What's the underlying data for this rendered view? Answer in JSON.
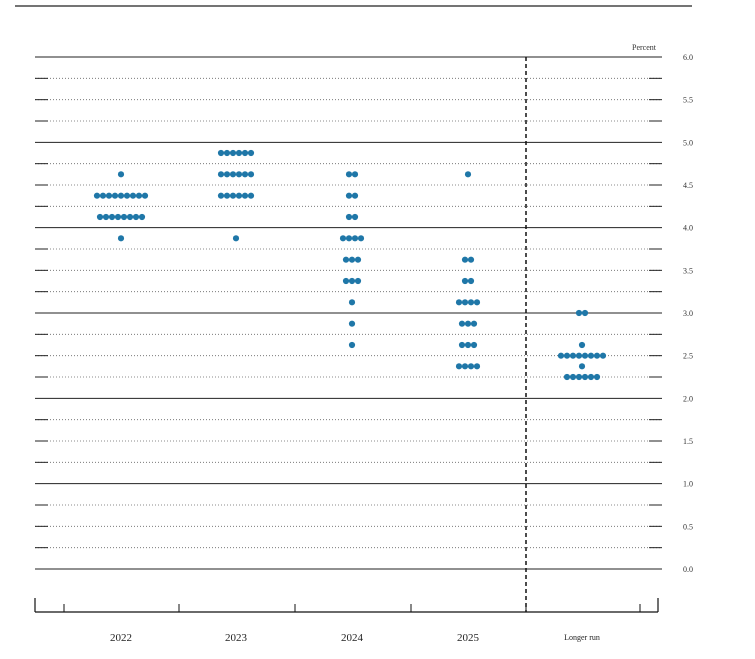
{
  "chart_data": {
    "type": "scatter",
    "subtype": "dot plot",
    "y_unit_label": "Percent",
    "ylim": [
      0.0,
      6.0
    ],
    "y_major_ticks": [
      "0.0",
      "0.5",
      "1.0",
      "1.5",
      "2.0",
      "2.5",
      "3.0",
      "3.5",
      "4.0",
      "4.5",
      "5.0",
      "5.5",
      "6.0"
    ],
    "categories": [
      "2022",
      "2023",
      "2024",
      "2025",
      "Longer run"
    ],
    "dot_color": "#1f77a8",
    "longer_run_divider": "dashed vertical line",
    "series": [
      {
        "category": "2022",
        "points": [
          {
            "y": 4.625,
            "count": 1
          },
          {
            "y": 4.375,
            "count": 9
          },
          {
            "y": 4.125,
            "count": 8
          },
          {
            "y": 3.875,
            "count": 1
          }
        ]
      },
      {
        "category": "2023",
        "points": [
          {
            "y": 4.875,
            "count": 6
          },
          {
            "y": 4.625,
            "count": 6
          },
          {
            "y": 4.375,
            "count": 6
          },
          {
            "y": 3.875,
            "count": 1
          }
        ]
      },
      {
        "category": "2024",
        "points": [
          {
            "y": 4.625,
            "count": 2
          },
          {
            "y": 4.375,
            "count": 2
          },
          {
            "y": 4.125,
            "count": 2
          },
          {
            "y": 3.875,
            "count": 4
          },
          {
            "y": 3.625,
            "count": 3
          },
          {
            "y": 3.375,
            "count": 3
          },
          {
            "y": 3.125,
            "count": 1
          },
          {
            "y": 2.875,
            "count": 1
          },
          {
            "y": 2.625,
            "count": 1
          }
        ]
      },
      {
        "category": "2025",
        "points": [
          {
            "y": 4.625,
            "count": 1
          },
          {
            "y": 3.625,
            "count": 2
          },
          {
            "y": 3.375,
            "count": 2
          },
          {
            "y": 3.125,
            "count": 4
          },
          {
            "y": 2.875,
            "count": 3
          },
          {
            "y": 2.625,
            "count": 3
          },
          {
            "y": 2.375,
            "count": 4
          }
        ]
      },
      {
        "category": "Longer run",
        "points": [
          {
            "y": 3.0,
            "count": 2
          },
          {
            "y": 2.625,
            "count": 1
          },
          {
            "y": 2.5,
            "count": 8
          },
          {
            "y": 2.375,
            "count": 1
          },
          {
            "y": 2.25,
            "count": 6
          }
        ]
      }
    ]
  }
}
